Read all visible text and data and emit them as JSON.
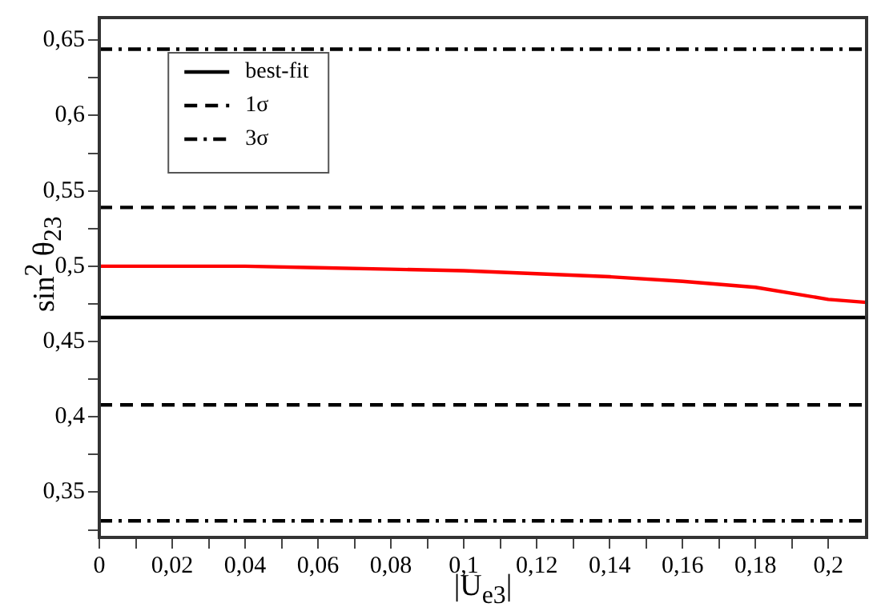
{
  "chart_data": {
    "type": "line",
    "xlabel": "|U$_{e3}$|",
    "ylabel": "sin$^{2}$ θ$_{23}$",
    "xlim": [
      0,
      0.2105
    ],
    "ylim": [
      0.32,
      0.665
    ],
    "xticks": [
      {
        "value": 0,
        "label": "0"
      },
      {
        "value": 0.01,
        "label": null
      },
      {
        "value": 0.02,
        "label": "0,02"
      },
      {
        "value": 0.03,
        "label": null
      },
      {
        "value": 0.04,
        "label": "0,04"
      },
      {
        "value": 0.05,
        "label": null
      },
      {
        "value": 0.06,
        "label": "0,06"
      },
      {
        "value": 0.07,
        "label": null
      },
      {
        "value": 0.08,
        "label": "0,08"
      },
      {
        "value": 0.09,
        "label": null
      },
      {
        "value": 0.1,
        "label": "0,1"
      },
      {
        "value": 0.11,
        "label": null
      },
      {
        "value": 0.12,
        "label": "0,12"
      },
      {
        "value": 0.13,
        "label": null
      },
      {
        "value": 0.14,
        "label": "0,14"
      },
      {
        "value": 0.15,
        "label": null
      },
      {
        "value": 0.16,
        "label": "0,16"
      },
      {
        "value": 0.17,
        "label": null
      },
      {
        "value": 0.18,
        "label": "0,18"
      },
      {
        "value": 0.19,
        "label": null
      },
      {
        "value": 0.2,
        "label": "0,2"
      }
    ],
    "yticks": [
      {
        "value": 0.325,
        "label": null
      },
      {
        "value": 0.35,
        "label": "0,35"
      },
      {
        "value": 0.375,
        "label": null
      },
      {
        "value": 0.4,
        "label": "0,4"
      },
      {
        "value": 0.425,
        "label": null
      },
      {
        "value": 0.45,
        "label": "0,45"
      },
      {
        "value": 0.475,
        "label": null
      },
      {
        "value": 0.5,
        "label": "0,5"
      },
      {
        "value": 0.525,
        "label": null
      },
      {
        "value": 0.55,
        "label": "0,55"
      },
      {
        "value": 0.575,
        "label": null
      },
      {
        "value": 0.6,
        "label": "0,6"
      },
      {
        "value": 0.625,
        "label": null
      },
      {
        "value": 0.65,
        "label": "0,65"
      }
    ],
    "grid": false,
    "legend": "top left",
    "marker": "none",
    "series": [
      {
        "name": "best-fit",
        "color": "#000000",
        "line_style": "solid",
        "x": [
          0,
          0.2105
        ],
        "values": [
          0.466,
          0.466
        ]
      },
      {
        "name": "1σ",
        "color": "#000000",
        "line_style": "dashed",
        "x": [
          0,
          0.2105
        ],
        "values": [
          0.539,
          0.539
        ]
      },
      {
        "color": "#000000",
        "line_style": "dashed",
        "x": [
          0,
          0.2105
        ],
        "values": [
          0.408,
          0.408
        ]
      },
      {
        "name": "3σ",
        "color": "#000000",
        "line_style": "dashdot",
        "x": [
          0,
          0.2105
        ],
        "values": [
          0.644,
          0.644
        ]
      },
      {
        "color": "#000000",
        "line_style": "dashdot",
        "x": [
          0,
          0.2105
        ],
        "values": [
          0.331,
          0.331
        ]
      },
      {
        "color": "#ff0000",
        "line_style": "solid",
        "x": [
          0,
          0.02,
          0.04,
          0.06,
          0.08,
          0.1,
          0.12,
          0.14,
          0.16,
          0.18,
          0.2,
          0.2105
        ],
        "values": [
          0.5,
          0.5,
          0.5,
          0.499,
          0.498,
          0.497,
          0.495,
          0.493,
          0.49,
          0.486,
          0.478,
          0.476
        ]
      }
    ]
  }
}
